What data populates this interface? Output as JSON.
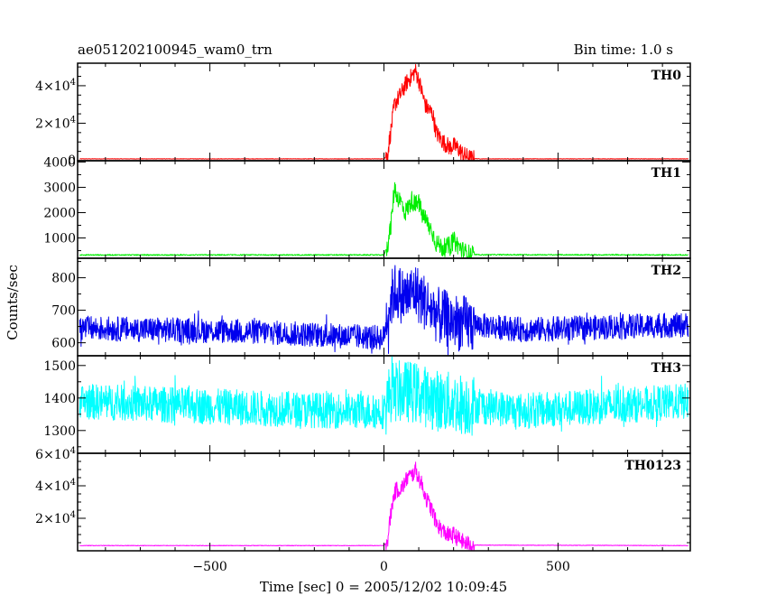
{
  "header": {
    "left": "ae051202100945_wam0_trn",
    "right": "Bin time: 1.0 s"
  },
  "chart_data": {
    "type": "line",
    "ylabel": "Counts/sec",
    "xlabel": "Time [sec] 0 = 2005/12/02 10:09:45",
    "xlim": [
      -880,
      880
    ],
    "x_ticks": [
      -500,
      0,
      500
    ],
    "x_tick_labels": [
      "−500",
      "0",
      "500"
    ],
    "x_minor_step": 100,
    "panels": [
      {
        "title": "TH0",
        "color": "#ff0000",
        "ylim": [
          0,
          52000
        ],
        "y_tick_labels": [
          {
            "value": 40000,
            "label": "4×10^4"
          },
          {
            "value": 20000,
            "label": "2×10^4"
          },
          {
            "value": 0,
            "label": "0"
          }
        ],
        "y_major": [
          0,
          20000,
          40000
        ],
        "y_minor": 5000,
        "baseline": 1000,
        "noise": 0,
        "jitter": 120,
        "profile": [
          [
            -880,
            1000
          ],
          [
            0,
            1000
          ],
          [
            10,
            3000
          ],
          [
            15,
            10000
          ],
          [
            20,
            16000
          ],
          [
            30,
            30000
          ],
          [
            40,
            33000
          ],
          [
            50,
            36000
          ],
          [
            60,
            40000
          ],
          [
            70,
            43000
          ],
          [
            80,
            45000
          ],
          [
            90,
            48000
          ],
          [
            100,
            43000
          ],
          [
            110,
            36000
          ],
          [
            120,
            29000
          ],
          [
            140,
            25000
          ],
          [
            150,
            15000
          ],
          [
            170,
            10000
          ],
          [
            190,
            7000
          ],
          [
            200,
            8000
          ],
          [
            210,
            7000
          ],
          [
            230,
            3000
          ],
          [
            250,
            1200
          ],
          [
            280,
            1000
          ],
          [
            880,
            1000
          ]
        ],
        "burst_jitter": 4500
      },
      {
        "title": "TH1",
        "color": "#00ee00",
        "ylim": [
          200,
          4050
        ],
        "y_tick_labels": [
          {
            "value": 4000,
            "label": "4000"
          },
          {
            "value": 3000,
            "label": "3000"
          },
          {
            "value": 2000,
            "label": "2000"
          },
          {
            "value": 1000,
            "label": "1000"
          }
        ],
        "y_major": [
          1000,
          2000,
          3000,
          4000
        ],
        "y_minor": 500,
        "baseline": 330,
        "noise": 10,
        "jitter": 12,
        "profile": [
          [
            -880,
            330
          ],
          [
            0,
            330
          ],
          [
            10,
            700
          ],
          [
            20,
            1500
          ],
          [
            30,
            3000
          ],
          [
            40,
            2600
          ],
          [
            50,
            2400
          ],
          [
            60,
            2000
          ],
          [
            70,
            2200
          ],
          [
            80,
            2500
          ],
          [
            90,
            2300
          ],
          [
            100,
            2400
          ],
          [
            110,
            1900
          ],
          [
            120,
            1700
          ],
          [
            140,
            1200
          ],
          [
            150,
            800
          ],
          [
            170,
            600
          ],
          [
            190,
            700
          ],
          [
            200,
            900
          ],
          [
            210,
            750
          ],
          [
            230,
            450
          ],
          [
            250,
            340
          ],
          [
            880,
            330
          ]
        ],
        "burst_jitter": 350
      },
      {
        "title": "TH2",
        "color": "#0000ee",
        "ylim": [
          560,
          860
        ],
        "y_tick_labels": [
          {
            "value": 800,
            "label": "800"
          },
          {
            "value": 700,
            "label": "700"
          },
          {
            "value": 600,
            "label": "600"
          }
        ],
        "y_major": [
          600,
          700,
          800
        ],
        "y_minor": 50,
        "baseline": 640,
        "noise": 38,
        "jitter": 0,
        "profile": [
          [
            -880,
            645
          ],
          [
            -400,
            635
          ],
          [
            -100,
            620
          ],
          [
            0,
            615
          ],
          [
            10,
            700
          ],
          [
            30,
            760
          ],
          [
            60,
            740
          ],
          [
            90,
            760
          ],
          [
            120,
            720
          ],
          [
            160,
            680
          ],
          [
            220,
            660
          ],
          [
            400,
            640
          ],
          [
            700,
            650
          ],
          [
            880,
            655
          ]
        ],
        "burst_jitter": 50
      },
      {
        "title": "TH3",
        "color": "#00ffff",
        "ylim": [
          1230,
          1530
        ],
        "y_tick_labels": [
          {
            "value": 1500,
            "label": "1500"
          },
          {
            "value": 1400,
            "label": "1400"
          },
          {
            "value": 1300,
            "label": "1300"
          }
        ],
        "y_major": [
          1300,
          1400,
          1500
        ],
        "y_minor": 50,
        "baseline": 1380,
        "noise": 55,
        "jitter": 0,
        "profile": [
          [
            -880,
            1390
          ],
          [
            -400,
            1370
          ],
          [
            -100,
            1360
          ],
          [
            0,
            1360
          ],
          [
            20,
            1420
          ],
          [
            80,
            1420
          ],
          [
            160,
            1390
          ],
          [
            400,
            1360
          ],
          [
            880,
            1390
          ]
        ],
        "burst_jitter": 40
      },
      {
        "title": "TH0123",
        "color": "#ff00ff",
        "ylim": [
          0,
          60000
        ],
        "y_tick_labels": [
          {
            "value": 60000,
            "label": "6×10^4"
          },
          {
            "value": 40000,
            "label": "4×10^4"
          },
          {
            "value": 20000,
            "label": "2×10^4"
          }
        ],
        "y_major": [
          20000,
          40000,
          60000
        ],
        "y_minor": 5000,
        "baseline": 3200,
        "noise": 0,
        "jitter": 150,
        "profile": [
          [
            -880,
            3200
          ],
          [
            0,
            3200
          ],
          [
            10,
            6000
          ],
          [
            15,
            15000
          ],
          [
            20,
            23000
          ],
          [
            30,
            36000
          ],
          [
            40,
            38000
          ],
          [
            50,
            38000
          ],
          [
            60,
            42000
          ],
          [
            70,
            46000
          ],
          [
            80,
            46000
          ],
          [
            90,
            50000
          ],
          [
            100,
            45000
          ],
          [
            110,
            40000
          ],
          [
            120,
            33000
          ],
          [
            140,
            24000
          ],
          [
            150,
            17000
          ],
          [
            170,
            12000
          ],
          [
            190,
            9000
          ],
          [
            200,
            10000
          ],
          [
            210,
            8000
          ],
          [
            230,
            5000
          ],
          [
            250,
            3500
          ],
          [
            880,
            3200
          ]
        ],
        "burst_jitter": 5000
      }
    ]
  }
}
